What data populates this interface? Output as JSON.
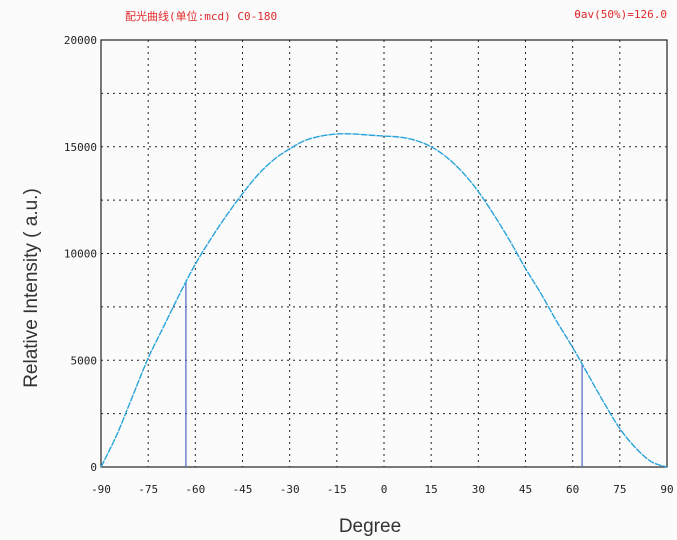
{
  "header": {
    "top_title": "",
    "left": "配光曲线(单位:mcd)  C0-180",
    "right": "θav(50%)=126.0"
  },
  "colors": {
    "curve": "#2aa3d9",
    "marker": "#5b6fc4",
    "header_text": "#e0282a",
    "grid": "#222222"
  },
  "chart_data": {
    "type": "line",
    "title": "",
    "xlabel": "Degree",
    "ylabel": "Relative Intensity ( a.u.)",
    "xlim": [
      -90,
      90
    ],
    "ylim": [
      0,
      20000
    ],
    "x_ticks": [
      -90,
      -75,
      -60,
      -45,
      -30,
      -15,
      0,
      15,
      30,
      45,
      60,
      75,
      90
    ],
    "x_tick_labels": [
      "-90",
      "-75",
      "-60",
      "-45",
      "-30",
      "-15",
      "0",
      "15",
      "30",
      "45",
      "60",
      "75",
      "90"
    ],
    "y_ticks": [
      0,
      5000,
      10000,
      15000,
      20000
    ],
    "y_tick_labels": [
      "0",
      "5000",
      "10000",
      "15000",
      "20000"
    ],
    "grid": true,
    "series": [
      {
        "x": [
          -90,
          -85,
          -80,
          -75,
          -70,
          -65,
          -60,
          -55,
          -50,
          -45,
          -40,
          -35,
          -30,
          -25,
          -20,
          -15,
          -10,
          -5,
          0,
          5,
          10,
          15,
          20,
          25,
          30,
          35,
          40,
          45,
          50,
          55,
          60,
          65,
          70,
          75,
          80,
          85,
          90
        ],
        "y": [
          0,
          1500,
          3300,
          5100,
          6600,
          8100,
          9500,
          10700,
          11800,
          12800,
          13700,
          14400,
          14900,
          15300,
          15500,
          15600,
          15600,
          15550,
          15500,
          15450,
          15300,
          15000,
          14500,
          13800,
          12900,
          11800,
          10600,
          9300,
          8100,
          6800,
          5600,
          4300,
          3000,
          1800,
          900,
          250,
          0
        ]
      }
    ],
    "markers_x": [
      -63,
      63
    ]
  }
}
